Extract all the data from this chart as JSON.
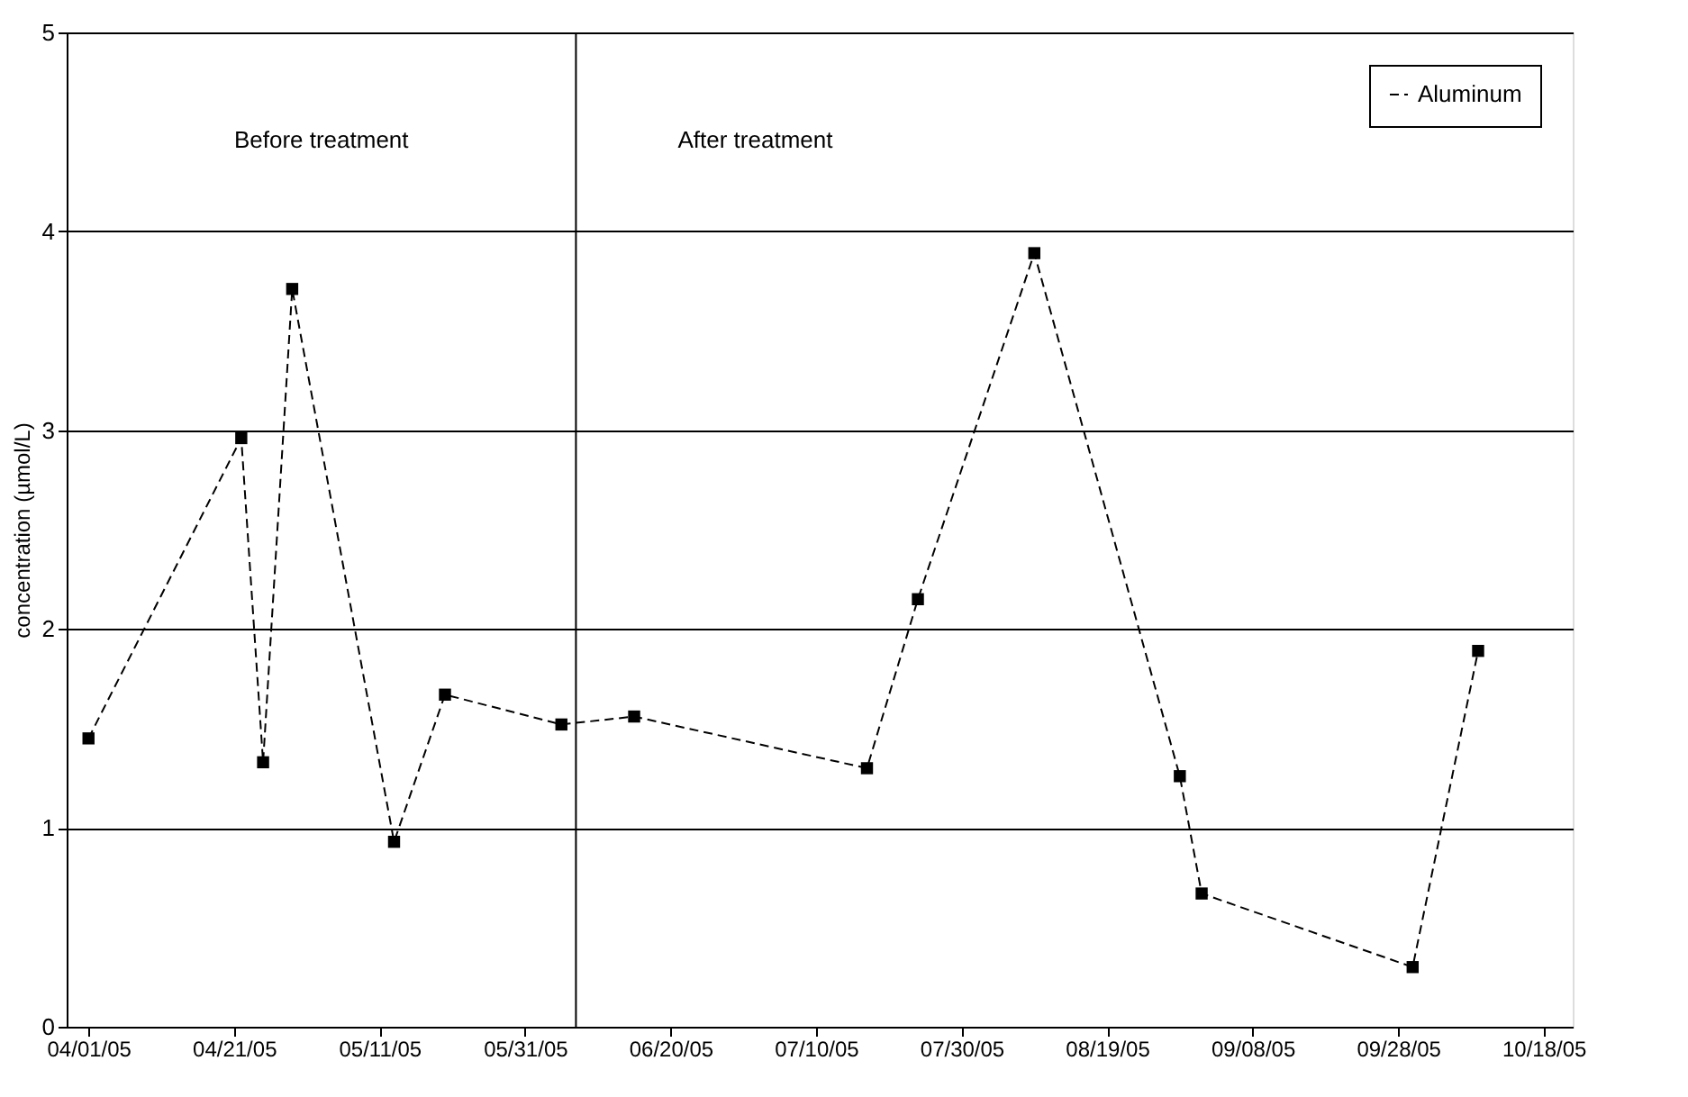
{
  "chart_data": {
    "type": "line",
    "ylabel": "concentration (µmol/L)",
    "x": [
      "2005-04-01",
      "2005-04-22",
      "2005-04-25",
      "2005-04-29",
      "2005-05-13",
      "2005-05-20",
      "2005-06-05",
      "2005-06-15",
      "2005-07-17",
      "2005-07-24",
      "2005-08-09",
      "2005-08-29",
      "2005-09-01",
      "2005-09-30",
      "2005-10-09"
    ],
    "series": [
      {
        "name": "Aluminum",
        "color": "#000000",
        "values": [
          1.45,
          2.96,
          1.33,
          3.71,
          0.93,
          1.67,
          1.52,
          1.56,
          1.3,
          2.15,
          3.89,
          1.26,
          0.67,
          0.3,
          1.89
        ]
      }
    ],
    "xlim": [
      "2005-03-29",
      "2005-10-22"
    ],
    "xticks": [
      {
        "value": "2005-04-01",
        "label": "04/01/05"
      },
      {
        "value": "2005-04-21",
        "label": "04/21/05"
      },
      {
        "value": "2005-05-11",
        "label": "05/11/05"
      },
      {
        "value": "2005-05-31",
        "label": "05/31/05"
      },
      {
        "value": "2005-06-20",
        "label": "06/20/05"
      },
      {
        "value": "2005-07-10",
        "label": "07/10/05"
      },
      {
        "value": "2005-07-30",
        "label": "07/30/05"
      },
      {
        "value": "2005-08-19",
        "label": "08/19/05"
      },
      {
        "value": "2005-09-08",
        "label": "09/08/05"
      },
      {
        "value": "2005-09-28",
        "label": "09/28/05"
      },
      {
        "value": "2005-10-18",
        "label": "10/18/05"
      }
    ],
    "ylim": [
      0,
      5
    ],
    "yticks": [
      0,
      1,
      2,
      3,
      4,
      5
    ],
    "ref_lines": [
      {
        "axis": "x",
        "value": "2005-06-07",
        "color": "#000000"
      }
    ],
    "annotations": [
      "Before treatment",
      "After treatment"
    ],
    "grid": "y",
    "legend": "top right",
    "marker": "square",
    "line_style": "dashed"
  }
}
